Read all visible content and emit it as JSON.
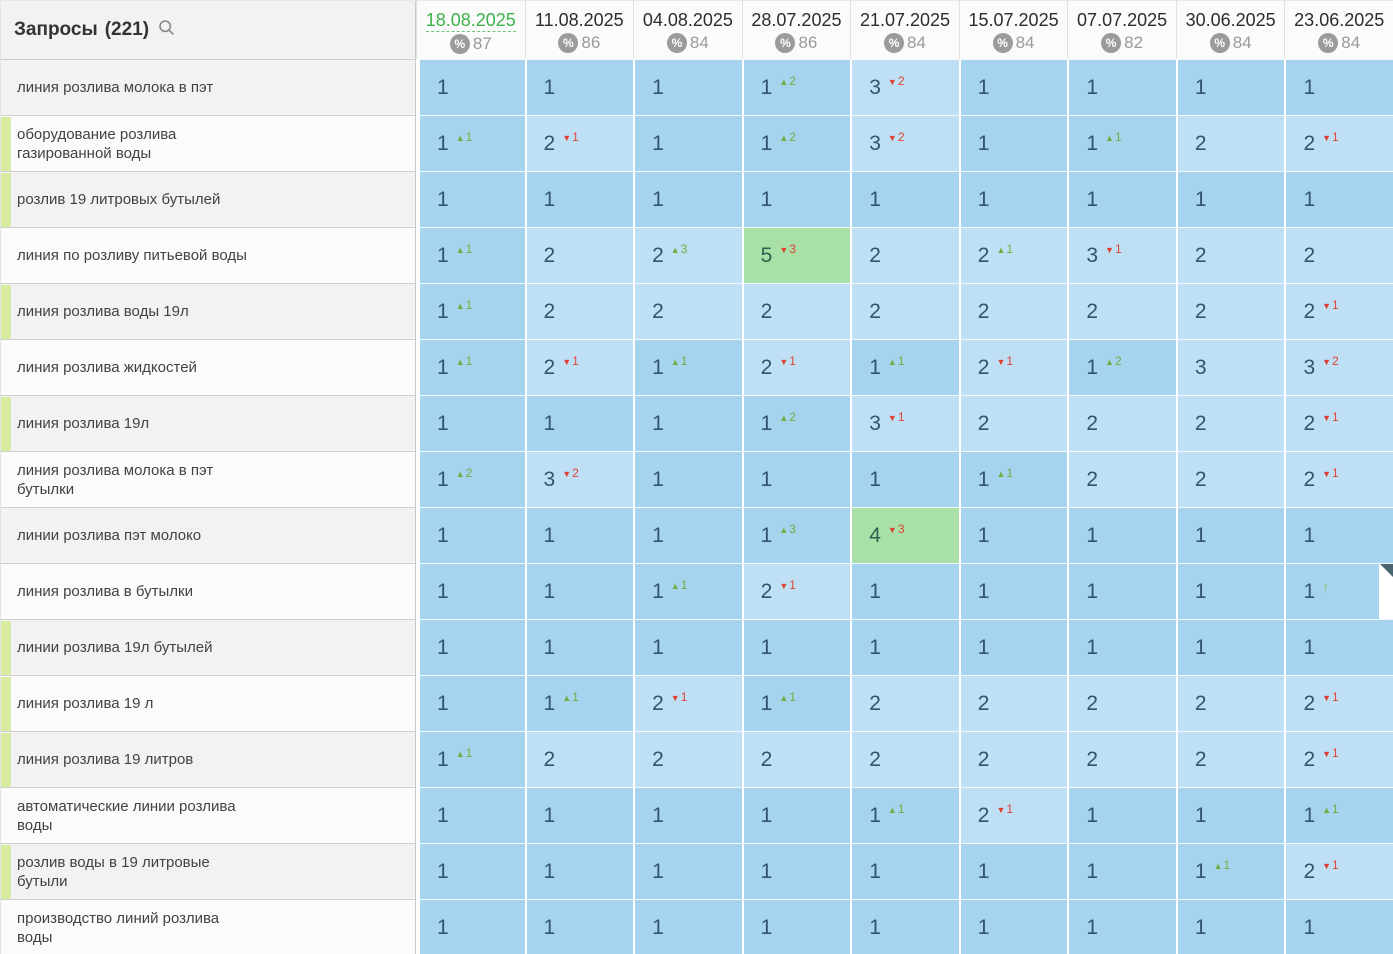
{
  "queries_panel": {
    "label": "Запросы",
    "count": "(221)"
  },
  "columns": [
    {
      "date": "18.08.2025",
      "percent": "87",
      "active": true
    },
    {
      "date": "11.08.2025",
      "percent": "86",
      "active": false
    },
    {
      "date": "04.08.2025",
      "percent": "84",
      "active": false
    },
    {
      "date": "28.07.2025",
      "percent": "86",
      "active": false
    },
    {
      "date": "21.07.2025",
      "percent": "84",
      "active": false
    },
    {
      "date": "15.07.2025",
      "percent": "84",
      "active": false
    },
    {
      "date": "07.07.2025",
      "percent": "82",
      "active": false
    },
    {
      "date": "30.06.2025",
      "percent": "84",
      "active": false
    },
    {
      "date": "23.06.2025",
      "percent": "84",
      "active": false
    }
  ],
  "rows": [
    {
      "query": "линия розлива молока в пэт",
      "strip": false,
      "cells": [
        [
          "1",
          null
        ],
        [
          "1",
          null
        ],
        [
          "1",
          null
        ],
        [
          "1",
          "u2"
        ],
        [
          "3",
          "d2"
        ],
        [
          "1",
          null
        ],
        [
          "1",
          null
        ],
        [
          "1",
          null
        ],
        [
          "1",
          null
        ]
      ]
    },
    {
      "query": "оборудование розлива\nгазированной воды",
      "strip": true,
      "cells": [
        [
          "1",
          "u1"
        ],
        [
          "2",
          "d1"
        ],
        [
          "1",
          null
        ],
        [
          "1",
          "u2"
        ],
        [
          "3",
          "d2"
        ],
        [
          "1",
          null
        ],
        [
          "1",
          "u1"
        ],
        [
          "2",
          null
        ],
        [
          "2",
          "d1"
        ]
      ]
    },
    {
      "query": "розлив 19 литровых бутылей",
      "strip": true,
      "cells": [
        [
          "1",
          null
        ],
        [
          "1",
          null
        ],
        [
          "1",
          null
        ],
        [
          "1",
          null
        ],
        [
          "1",
          null
        ],
        [
          "1",
          null
        ],
        [
          "1",
          null
        ],
        [
          "1",
          null
        ],
        [
          "1",
          null
        ]
      ]
    },
    {
      "query": "линия по розливу питьевой воды",
      "strip": false,
      "cells": [
        [
          "1",
          "u1"
        ],
        [
          "2",
          null
        ],
        [
          "2",
          "u3"
        ],
        [
          "5",
          "d3"
        ],
        [
          "2",
          null
        ],
        [
          "2",
          "u1"
        ],
        [
          "3",
          "d1"
        ],
        [
          "2",
          null
        ],
        [
          "2",
          null
        ]
      ]
    },
    {
      "query": "линия розлива воды 19л",
      "strip": true,
      "cells": [
        [
          "1",
          "u1"
        ],
        [
          "2",
          null
        ],
        [
          "2",
          null
        ],
        [
          "2",
          null
        ],
        [
          "2",
          null
        ],
        [
          "2",
          null
        ],
        [
          "2",
          null
        ],
        [
          "2",
          null
        ],
        [
          "2",
          "d1"
        ]
      ]
    },
    {
      "query": "линия розлива жидкостей",
      "strip": false,
      "cells": [
        [
          "1",
          "u1"
        ],
        [
          "2",
          "d1"
        ],
        [
          "1",
          "u1"
        ],
        [
          "2",
          "d1"
        ],
        [
          "1",
          "u1"
        ],
        [
          "2",
          "d1"
        ],
        [
          "1",
          "u2"
        ],
        [
          "3",
          null
        ],
        [
          "3",
          "d2"
        ]
      ]
    },
    {
      "query": "линия розлива 19л",
      "strip": true,
      "cells": [
        [
          "1",
          null
        ],
        [
          "1",
          null
        ],
        [
          "1",
          null
        ],
        [
          "1",
          "u2"
        ],
        [
          "3",
          "d1"
        ],
        [
          "2",
          null
        ],
        [
          "2",
          null
        ],
        [
          "2",
          null
        ],
        [
          "2",
          "d1"
        ]
      ]
    },
    {
      "query": "линия розлива молока в пэт\nбутылки",
      "strip": false,
      "cells": [
        [
          "1",
          "u2"
        ],
        [
          "3",
          "d2"
        ],
        [
          "1",
          null
        ],
        [
          "1",
          null
        ],
        [
          "1",
          null
        ],
        [
          "1",
          "u1"
        ],
        [
          "2",
          null
        ],
        [
          "2",
          null
        ],
        [
          "2",
          "d1"
        ]
      ]
    },
    {
      "query": "линии розлива пэт молоко",
      "strip": false,
      "cells": [
        [
          "1",
          null
        ],
        [
          "1",
          null
        ],
        [
          "1",
          null
        ],
        [
          "1",
          "u3"
        ],
        [
          "4",
          "d3"
        ],
        [
          "1",
          null
        ],
        [
          "1",
          null
        ],
        [
          "1",
          null
        ],
        [
          "1",
          null
        ]
      ]
    },
    {
      "query": "линия розлива в бутылки",
      "strip": false,
      "cells": [
        [
          "1",
          null
        ],
        [
          "1",
          null
        ],
        [
          "1",
          "u1"
        ],
        [
          "2",
          "d1"
        ],
        [
          "1",
          null
        ],
        [
          "1",
          null
        ],
        [
          "1",
          null
        ],
        [
          "1",
          null
        ],
        [
          "1",
          "u",
          "corner"
        ]
      ]
    },
    {
      "query": "линии розлива 19л бутылей",
      "strip": true,
      "cells": [
        [
          "1",
          null
        ],
        [
          "1",
          null
        ],
        [
          "1",
          null
        ],
        [
          "1",
          null
        ],
        [
          "1",
          null
        ],
        [
          "1",
          null
        ],
        [
          "1",
          null
        ],
        [
          "1",
          null
        ],
        [
          "1",
          null
        ]
      ]
    },
    {
      "query": "линия розлива 19 л",
      "strip": true,
      "cells": [
        [
          "1",
          null
        ],
        [
          "1",
          "u1"
        ],
        [
          "2",
          "d1"
        ],
        [
          "1",
          "u1"
        ],
        [
          "2",
          null
        ],
        [
          "2",
          null
        ],
        [
          "2",
          null
        ],
        [
          "2",
          null
        ],
        [
          "2",
          "d1"
        ]
      ]
    },
    {
      "query": "линия розлива 19 литров",
      "strip": true,
      "cells": [
        [
          "1",
          "u1"
        ],
        [
          "2",
          null
        ],
        [
          "2",
          null
        ],
        [
          "2",
          null
        ],
        [
          "2",
          null
        ],
        [
          "2",
          null
        ],
        [
          "2",
          null
        ],
        [
          "2",
          null
        ],
        [
          "2",
          "d1"
        ]
      ]
    },
    {
      "query": "автоматические линии розлива\nводы",
      "strip": false,
      "cells": [
        [
          "1",
          null
        ],
        [
          "1",
          null
        ],
        [
          "1",
          null
        ],
        [
          "1",
          null
        ],
        [
          "1",
          "u1"
        ],
        [
          "2",
          "d1"
        ],
        [
          "1",
          null
        ],
        [
          "1",
          null
        ],
        [
          "1",
          "u1"
        ]
      ]
    },
    {
      "query": "розлив воды в 19 литровые\nбутыли",
      "strip": true,
      "cells": [
        [
          "1",
          null
        ],
        [
          "1",
          null
        ],
        [
          "1",
          null
        ],
        [
          "1",
          null
        ],
        [
          "1",
          null
        ],
        [
          "1",
          null
        ],
        [
          "1",
          null
        ],
        [
          "1",
          "u1"
        ],
        [
          "2",
          "d1"
        ]
      ]
    },
    {
      "query": "производство линий розлива\nводы",
      "strip": false,
      "cells": [
        [
          "1",
          null
        ],
        [
          "1",
          null
        ],
        [
          "1",
          null
        ],
        [
          "1",
          null
        ],
        [
          "1",
          null
        ],
        [
          "1",
          null
        ],
        [
          "1",
          null
        ],
        [
          "1",
          null
        ],
        [
          "1",
          null
        ]
      ]
    }
  ],
  "colors": {
    "pos1_bg": "#a6d4ef",
    "pos2_3_bg": "#bfdff5",
    "pos4plus_bg": "#a8e0a8",
    "up_indicator": "#6fae3f",
    "down_indicator": "#dc4334",
    "active_date": "#3db24a",
    "group_strip": "#d7eba1",
    "percent_badge": "#9b9b9b"
  }
}
